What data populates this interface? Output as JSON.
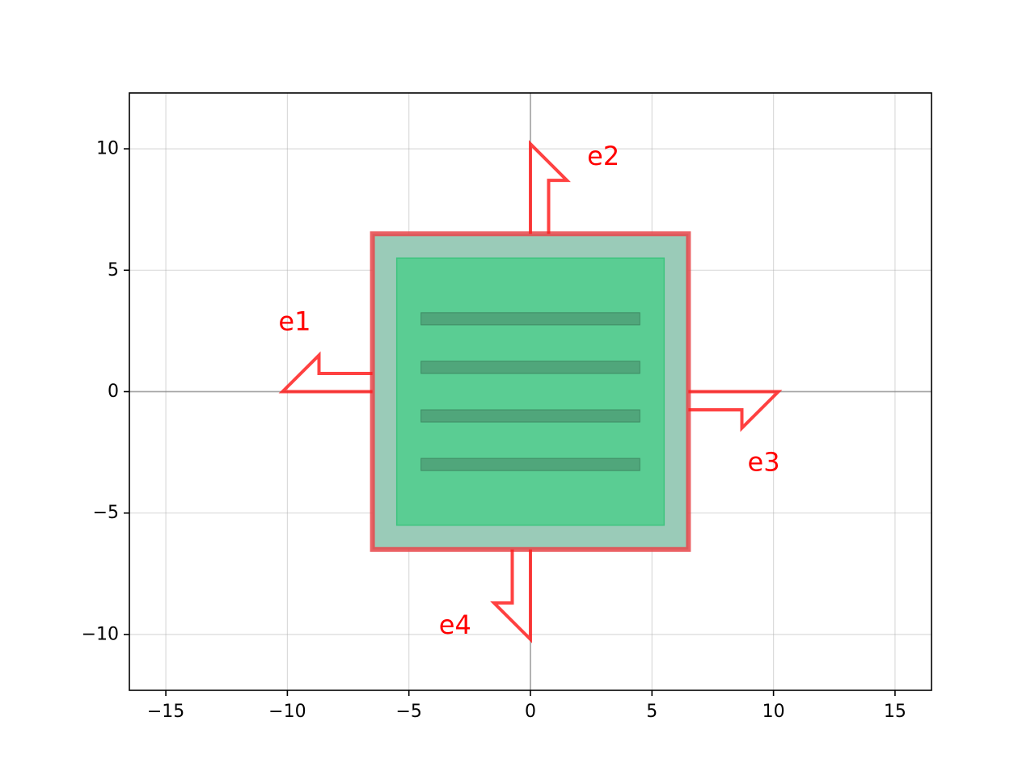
{
  "chart_data": {
    "type": "diagram",
    "xlim": [
      -16.5,
      16.5
    ],
    "ylim": [
      -12.3,
      12.3
    ],
    "xticks": [
      -15,
      -10,
      -5,
      0,
      5,
      10,
      15
    ],
    "yticks": [
      -10,
      -5,
      0,
      5,
      10
    ],
    "xtick_labels": [
      "−15",
      "−10",
      "−5",
      "0",
      "5",
      "10",
      "15"
    ],
    "ytick_labels": [
      "−10",
      "−5",
      "0",
      "5",
      "10"
    ],
    "grid": true,
    "zero_lines": true,
    "outer_box": {
      "xmin": -6.5,
      "xmax": 6.5,
      "ymin": -6.5,
      "ymax": 6.5,
      "fill": "#9acbb8",
      "edge": "#e8474a"
    },
    "inner_box": {
      "xmin": -5.5,
      "xmax": 5.5,
      "ymin": -5.5,
      "ymax": 5.5,
      "fill": "#5acd93",
      "edge": "#3fc47f"
    },
    "bars": [
      {
        "xmin": -4.5,
        "xmax": 4.5,
        "y": 3,
        "height": 0.5
      },
      {
        "xmin": -4.5,
        "xmax": 4.5,
        "y": 1,
        "height": 0.5
      },
      {
        "xmin": -4.5,
        "xmax": 4.5,
        "y": -1,
        "height": 0.5
      },
      {
        "xmin": -4.5,
        "xmax": 4.5,
        "y": -3,
        "height": 0.5
      }
    ],
    "bar_color": "#4f9f77",
    "ports": [
      {
        "name": "e1",
        "x": -6.5,
        "y": 0,
        "direction": "left",
        "label_x": -9.7,
        "label_y": 2.9
      },
      {
        "name": "e2",
        "x": 0,
        "y": 6.5,
        "direction": "up",
        "label_x": 3.0,
        "label_y": 9.7
      },
      {
        "name": "e3",
        "x": 6.5,
        "y": 0,
        "direction": "right",
        "label_x": 9.6,
        "label_y": -2.9
      },
      {
        "name": "e4",
        "x": 0,
        "y": -6.5,
        "direction": "down",
        "label_x": -3.1,
        "label_y": -9.6
      }
    ],
    "port_color": "#ff2020",
    "port_label_color": "#ff0000"
  }
}
